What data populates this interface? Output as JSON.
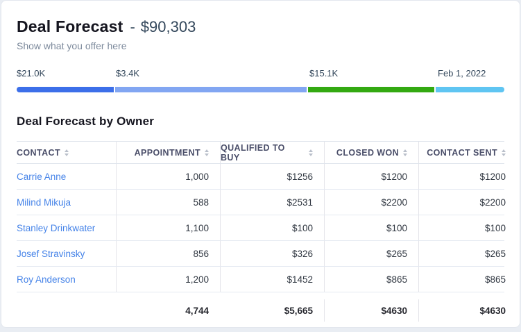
{
  "header": {
    "title": "Deal Forecast",
    "separator": "-",
    "amount": "$90,303",
    "subtitle": "Show what you offer here"
  },
  "progress": {
    "segments": [
      {
        "label": "$21.0K",
        "color": "#3c6fe9"
      },
      {
        "label": "$3.4K",
        "color": "#82a6f2"
      },
      {
        "label": "$15.1K",
        "color": "#33a911"
      },
      {
        "label": "Feb 1, 2022",
        "color": "#5fc5f2"
      }
    ]
  },
  "table": {
    "title": "Deal Forecast by Owner",
    "columns": [
      "CONTACT",
      "APPOINTMENT",
      "QUALIFIED TO BUY",
      "CLOSED WON",
      "CONTACT SENT"
    ],
    "rows": [
      {
        "contact": "Carrie Anne",
        "appointment": "1,000",
        "qualified": "$1256",
        "closed": "$1200",
        "sent": "$1200"
      },
      {
        "contact": "Milind Mikuja",
        "appointment": "588",
        "qualified": "$2531",
        "closed": "$2200",
        "sent": "$2200"
      },
      {
        "contact": "Stanley Drinkwater",
        "appointment": "1,100",
        "qualified": "$100",
        "closed": "$100",
        "sent": "$100"
      },
      {
        "contact": "Josef Stravinsky",
        "appointment": "856",
        "qualified": "$326",
        "closed": "$265",
        "sent": "$265"
      },
      {
        "contact": "Roy Anderson",
        "appointment": "1,200",
        "qualified": "$1452",
        "closed": "$865",
        "sent": "$865"
      }
    ],
    "totals": {
      "appointment": "4,744",
      "qualified": "$5,665",
      "closed": "$4630",
      "sent": "$4630"
    }
  },
  "colors": {
    "link_blue": "#4583e8",
    "title_dark": "#15151f",
    "amount_gray": "#33475b",
    "subtitle_gray": "#7d8a9c",
    "page_background": "#e9edf3"
  }
}
